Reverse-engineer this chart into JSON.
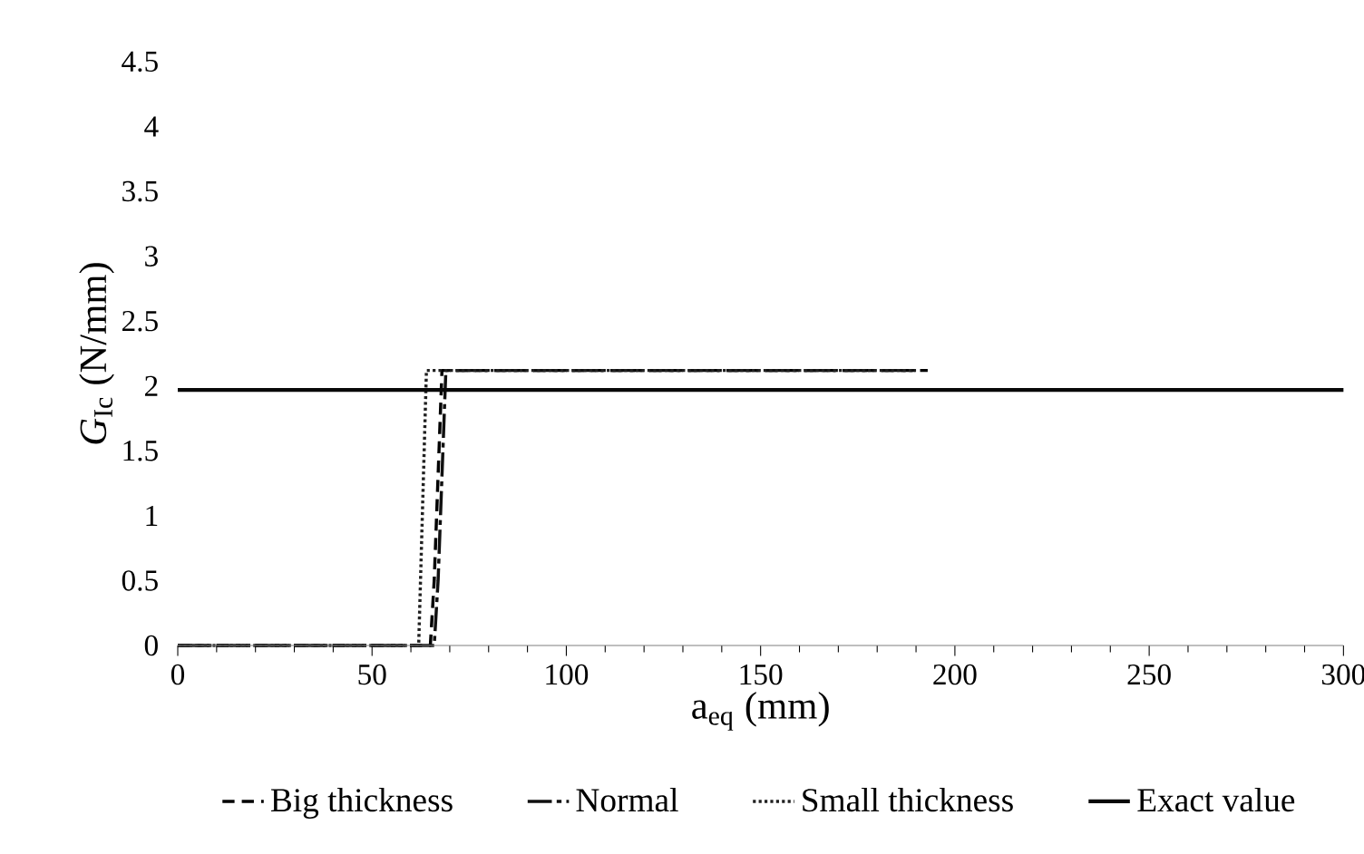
{
  "chart_data": {
    "type": "line",
    "xlabel": "a$_{eq}$ (mm)",
    "ylabel": "*G*$_{Ic}$ (N/mm)",
    "xlim": [
      0,
      300
    ],
    "xticks": [
      0,
      50,
      100,
      150,
      200,
      250,
      300
    ],
    "ylim": [
      0,
      4.5
    ],
    "yticks": [
      0,
      0.5,
      1,
      1.5,
      2,
      2.5,
      3,
      3.5,
      4,
      4.5
    ],
    "grid": false,
    "legend": "bottom",
    "marker": "none",
    "series": [
      {
        "name": "Big thickness",
        "color": "#000000",
        "line_style": "dashed",
        "x": [
          0,
          65,
          66,
          68,
          100,
          150,
          193
        ],
        "values": [
          0,
          0,
          0.5,
          2.12,
          2.12,
          2.12,
          2.12
        ]
      },
      {
        "name": "Normal",
        "color": "#101010",
        "line_style": "dashed",
        "x": [
          0,
          66,
          67,
          69,
          100,
          150,
          190
        ],
        "values": [
          0,
          0,
          0.5,
          2.12,
          2.12,
          2.12,
          2.12
        ]
      },
      {
        "name": "Small thickness",
        "color": "#202020",
        "line_style": "dotted",
        "x": [
          0,
          62,
          64,
          100,
          150,
          190
        ],
        "values": [
          0,
          0,
          2.12,
          2.12,
          2.12,
          2.12
        ]
      },
      {
        "name": "Exact value",
        "color": "#080808",
        "line_style": "solid",
        "x": [
          0,
          300
        ],
        "values": [
          1.97,
          1.97
        ]
      }
    ]
  }
}
